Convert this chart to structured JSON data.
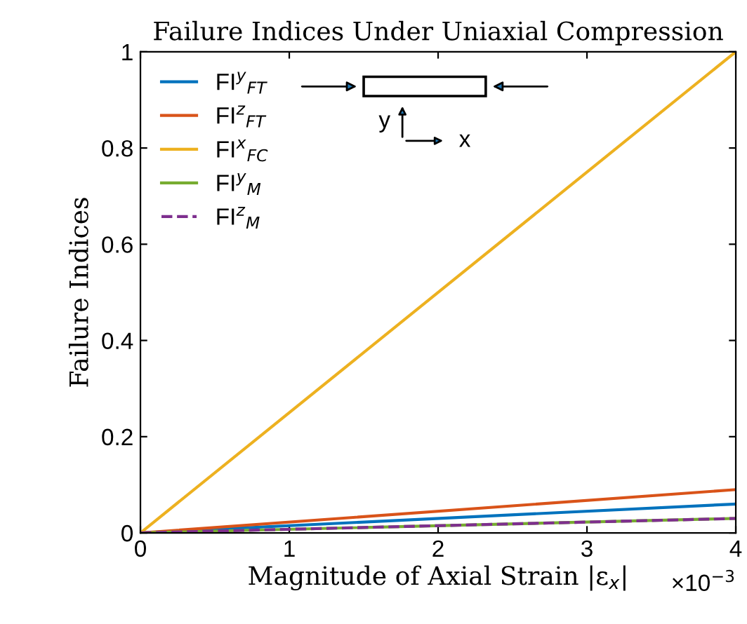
{
  "chart_data": {
    "type": "line",
    "title": "Failure Indices Under Uniaxial Compression",
    "xlabel": "Magnitude of Axial Strain |ε$_{x}$|",
    "ylabel": "Failure Indices",
    "x": [
      0,
      4
    ],
    "series": [
      {
        "name": "FI$^{y}$$_{FT}$",
        "color": "#0072bd",
        "values": [
          0,
          0.06
        ]
      },
      {
        "name": "FI$^{z}$$_{FT}$",
        "color": "#d95319",
        "values": [
          0,
          0.09
        ]
      },
      {
        "name": "FI$^{x}$$_{FC}$",
        "color": "#edb120",
        "values": [
          0,
          1.0
        ]
      },
      {
        "name": "FI$^{y}$$_{M}$",
        "color": "#77ac30",
        "values": [
          0,
          0.03
        ]
      },
      {
        "name": "FI$^{z}$$_{M}$",
        "color": "#7e2f8e",
        "values": [
          0,
          0.03
        ],
        "line_style": "dashed"
      }
    ],
    "xlim": [
      0,
      4
    ],
    "ylim": [
      0,
      1
    ],
    "xticks": [
      0,
      1,
      2,
      3,
      4
    ],
    "yticks": [
      0,
      0.2,
      0.4,
      0.6,
      0.8,
      1
    ],
    "annotations": [
      "×10$^{−3}$",
      "y",
      "x"
    ],
    "legend": "top left",
    "grid": false,
    "marker": "none",
    "line_style": "solid"
  }
}
